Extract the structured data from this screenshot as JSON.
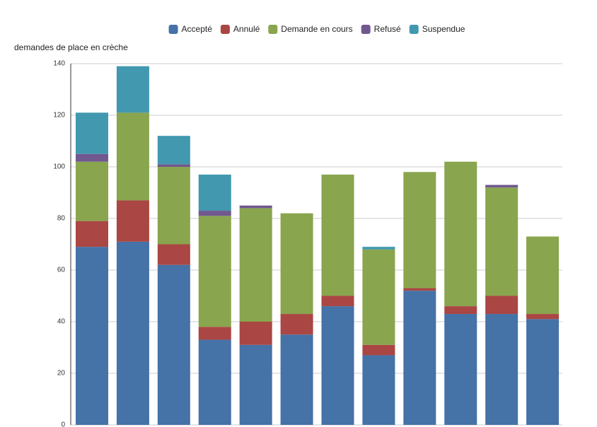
{
  "chart_data": {
    "type": "stacked_bar",
    "y_label": "demandes de place en crèche",
    "categories": [
      null,
      null,
      null,
      null,
      null,
      null,
      null,
      null,
      null,
      null,
      null,
      null
    ],
    "series": [
      {
        "name": "Accepté",
        "color": "#4572a7",
        "values": [
          69,
          71,
          62,
          33,
          31,
          35,
          46,
          27,
          52,
          43,
          43,
          41
        ]
      },
      {
        "name": "Annulé",
        "color": "#aa4643",
        "values": [
          10,
          16,
          8,
          5,
          9,
          8,
          4,
          4,
          1,
          3,
          7,
          2
        ]
      },
      {
        "name": "Demande en cours",
        "color": "#89a54e",
        "values": [
          23,
          34,
          30,
          43,
          44,
          39,
          47,
          37,
          45,
          56,
          42,
          30
        ]
      },
      {
        "name": "Refusé",
        "color": "#71588f",
        "values": [
          3,
          0,
          1,
          2,
          1,
          0,
          0,
          0,
          0,
          0,
          1,
          0
        ]
      },
      {
        "name": "Suspendue",
        "color": "#4198af",
        "values": [
          16,
          18,
          11,
          14,
          0,
          0,
          0,
          1,
          0,
          0,
          0,
          0
        ]
      }
    ],
    "ylim": [
      0,
      140
    ],
    "yticks": [
      0,
      20,
      40,
      60,
      80,
      100,
      120,
      140
    ],
    "grid": true
  }
}
